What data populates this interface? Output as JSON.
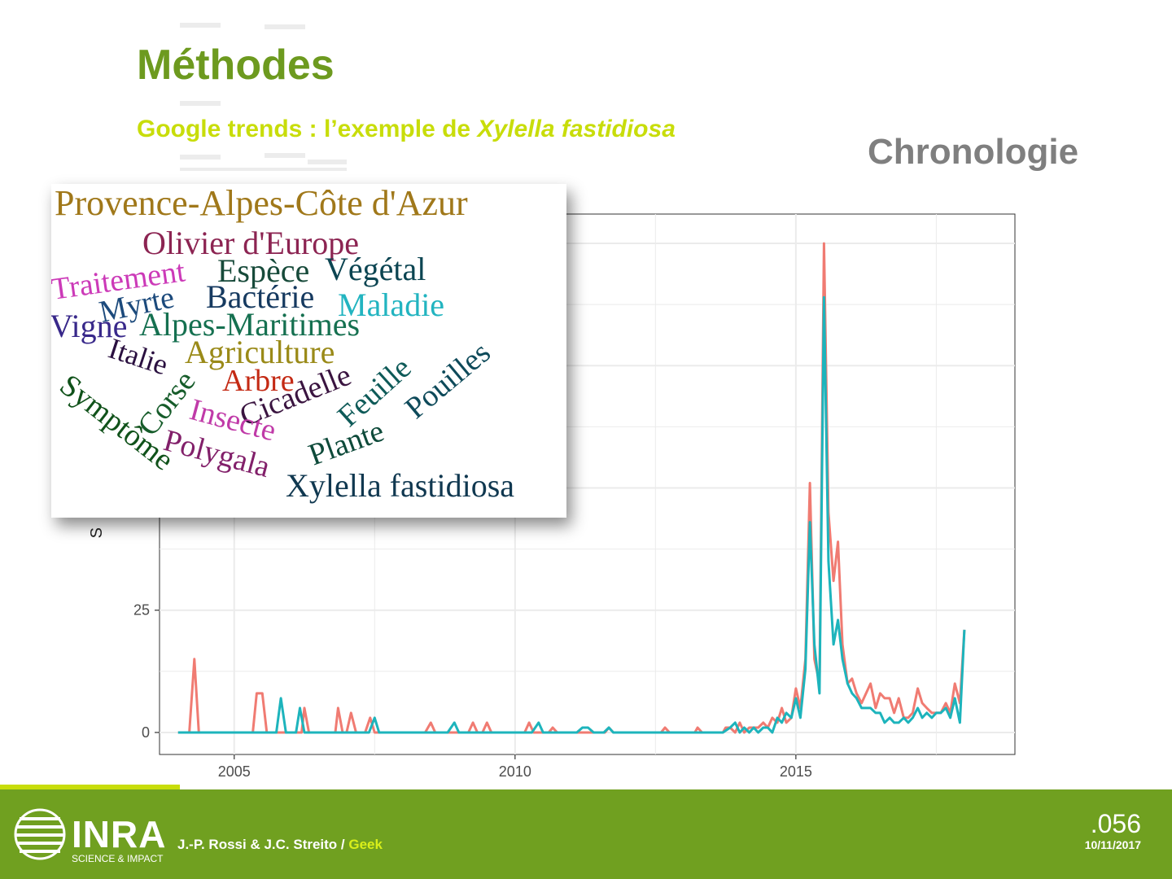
{
  "slide": {
    "title": "Méthodes",
    "subtitle_plain": "Google trends : l’exemple de ",
    "subtitle_italic": "Xylella fastidiosa",
    "section_label": "Chronologie"
  },
  "colors": {
    "title": "#6d9a1f",
    "subtitle": "#c8dd0a",
    "series_1": "#f07b72",
    "series_2": "#1db4bc",
    "footer": "#70a020"
  },
  "chart_data": {
    "type": "line",
    "xlim": [
      2003.67,
      2018.9
    ],
    "ylim": [
      -4.5,
      106
    ],
    "x_ticks": [
      2005,
      2010,
      2015
    ],
    "y_ticks": [
      0,
      25
    ],
    "ylabel_fragment": "S",
    "grid": true,
    "series": [
      {
        "color": "#f07b72",
        "points": [
          [
            2004.0,
            0
          ],
          [
            2004.2,
            0
          ],
          [
            2004.29,
            15
          ],
          [
            2004.37,
            0
          ],
          [
            2005.0,
            0
          ],
          [
            2005.33,
            0
          ],
          [
            2005.4,
            8
          ],
          [
            2005.5,
            8
          ],
          [
            2005.58,
            0
          ],
          [
            2006.2,
            0
          ],
          [
            2006.25,
            5
          ],
          [
            2006.33,
            0
          ],
          [
            2006.8,
            0
          ],
          [
            2006.85,
            5
          ],
          [
            2006.93,
            0
          ],
          [
            2007.0,
            0
          ],
          [
            2007.08,
            4
          ],
          [
            2007.17,
            0
          ],
          [
            2007.33,
            0
          ],
          [
            2007.42,
            3
          ],
          [
            2007.5,
            0
          ],
          [
            2008.0,
            0
          ],
          [
            2008.4,
            0
          ],
          [
            2008.5,
            2
          ],
          [
            2008.58,
            0
          ],
          [
            2009.0,
            0
          ],
          [
            2009.17,
            0
          ],
          [
            2009.25,
            2
          ],
          [
            2009.33,
            0
          ],
          [
            2009.42,
            0
          ],
          [
            2009.5,
            2
          ],
          [
            2009.58,
            0
          ],
          [
            2010.0,
            0
          ],
          [
            2010.17,
            0
          ],
          [
            2010.25,
            2
          ],
          [
            2010.33,
            0
          ],
          [
            2010.6,
            0
          ],
          [
            2010.67,
            1
          ],
          [
            2010.75,
            0
          ],
          [
            2011.6,
            0
          ],
          [
            2011.67,
            1
          ],
          [
            2011.75,
            0
          ],
          [
            2012.6,
            0
          ],
          [
            2012.67,
            1
          ],
          [
            2012.75,
            0
          ],
          [
            2013.2,
            0
          ],
          [
            2013.25,
            1
          ],
          [
            2013.33,
            0
          ],
          [
            2013.7,
            0
          ],
          [
            2013.75,
            1
          ],
          [
            2013.83,
            1
          ],
          [
            2013.92,
            0
          ],
          [
            2014.0,
            2
          ],
          [
            2014.08,
            0
          ],
          [
            2014.17,
            1
          ],
          [
            2014.25,
            1
          ],
          [
            2014.33,
            1
          ],
          [
            2014.42,
            2
          ],
          [
            2014.5,
            1
          ],
          [
            2014.58,
            3
          ],
          [
            2014.67,
            2
          ],
          [
            2014.75,
            5
          ],
          [
            2014.83,
            2
          ],
          [
            2014.92,
            3
          ],
          [
            2015.0,
            9
          ],
          [
            2015.08,
            5
          ],
          [
            2015.17,
            15
          ],
          [
            2015.25,
            51
          ],
          [
            2015.33,
            15
          ],
          [
            2015.42,
            10
          ],
          [
            2015.5,
            100
          ],
          [
            2015.58,
            45
          ],
          [
            2015.67,
            31
          ],
          [
            2015.75,
            39
          ],
          [
            2015.83,
            18
          ],
          [
            2015.92,
            10
          ],
          [
            2016.0,
            11
          ],
          [
            2016.08,
            8
          ],
          [
            2016.17,
            6
          ],
          [
            2016.25,
            8
          ],
          [
            2016.33,
            10
          ],
          [
            2016.42,
            5
          ],
          [
            2016.5,
            8
          ],
          [
            2016.58,
            7
          ],
          [
            2016.67,
            7
          ],
          [
            2016.75,
            4
          ],
          [
            2016.83,
            7
          ],
          [
            2016.92,
            3
          ],
          [
            2017.0,
            3
          ],
          [
            2017.08,
            4
          ],
          [
            2017.17,
            9
          ],
          [
            2017.25,
            6
          ],
          [
            2017.33,
            5
          ],
          [
            2017.42,
            4
          ],
          [
            2017.5,
            4
          ],
          [
            2017.58,
            4
          ],
          [
            2017.67,
            6
          ],
          [
            2017.75,
            4
          ],
          [
            2017.83,
            10
          ],
          [
            2017.92,
            6
          ],
          [
            2018.0,
            21
          ]
        ]
      },
      {
        "color": "#1db4bc",
        "points": [
          [
            2004.0,
            0
          ],
          [
            2005.75,
            0
          ],
          [
            2005.83,
            7
          ],
          [
            2005.92,
            0
          ],
          [
            2006.1,
            0
          ],
          [
            2006.17,
            5
          ],
          [
            2006.25,
            0
          ],
          [
            2007.4,
            0
          ],
          [
            2007.5,
            3
          ],
          [
            2007.58,
            0
          ],
          [
            2008.8,
            0
          ],
          [
            2008.92,
            2
          ],
          [
            2009.0,
            0
          ],
          [
            2010.3,
            0
          ],
          [
            2010.42,
            2
          ],
          [
            2010.5,
            0
          ],
          [
            2011.1,
            0
          ],
          [
            2011.2,
            1
          ],
          [
            2011.3,
            1
          ],
          [
            2011.4,
            0
          ],
          [
            2011.5,
            0
          ],
          [
            2011.58,
            0
          ],
          [
            2011.67,
            1
          ],
          [
            2011.75,
            0
          ],
          [
            2013.7,
            0
          ],
          [
            2013.83,
            1
          ],
          [
            2013.92,
            2
          ],
          [
            2014.0,
            0
          ],
          [
            2014.08,
            1
          ],
          [
            2014.17,
            0
          ],
          [
            2014.25,
            1
          ],
          [
            2014.33,
            0
          ],
          [
            2014.42,
            1
          ],
          [
            2014.5,
            1
          ],
          [
            2014.58,
            0
          ],
          [
            2014.67,
            3
          ],
          [
            2014.75,
            2
          ],
          [
            2014.83,
            4
          ],
          [
            2014.92,
            3
          ],
          [
            2015.0,
            7
          ],
          [
            2015.08,
            3
          ],
          [
            2015.17,
            13
          ],
          [
            2015.25,
            43
          ],
          [
            2015.33,
            18
          ],
          [
            2015.42,
            8
          ],
          [
            2015.5,
            89
          ],
          [
            2015.58,
            35
          ],
          [
            2015.67,
            18
          ],
          [
            2015.75,
            23
          ],
          [
            2015.83,
            15
          ],
          [
            2015.92,
            10
          ],
          [
            2016.0,
            8
          ],
          [
            2016.08,
            7
          ],
          [
            2016.17,
            5
          ],
          [
            2016.25,
            5
          ],
          [
            2016.33,
            5
          ],
          [
            2016.42,
            4
          ],
          [
            2016.5,
            4
          ],
          [
            2016.58,
            2
          ],
          [
            2016.67,
            3
          ],
          [
            2016.75,
            2
          ],
          [
            2016.83,
            2
          ],
          [
            2016.92,
            3
          ],
          [
            2017.0,
            2
          ],
          [
            2017.08,
            3
          ],
          [
            2017.17,
            5
          ],
          [
            2017.25,
            3
          ],
          [
            2017.33,
            4
          ],
          [
            2017.42,
            3
          ],
          [
            2017.5,
            4
          ],
          [
            2017.58,
            4
          ],
          [
            2017.67,
            5
          ],
          [
            2017.75,
            3
          ],
          [
            2017.83,
            7
          ],
          [
            2017.92,
            2
          ],
          [
            2018.0,
            21
          ]
        ]
      }
    ]
  },
  "wordcloud": {
    "words": [
      {
        "text": "Provence-Alpes-Côte d'Azur",
        "color": "#a0781a"
      },
      {
        "text": "Olivier d'Europe",
        "color": "#8c2452"
      },
      {
        "text": "Traitement",
        "color": "#cc3ab8"
      },
      {
        "text": "Espèce",
        "color": "#174a3a"
      },
      {
        "text": "Végétal",
        "color": "#0c4552"
      },
      {
        "text": "Myrte",
        "color": "#1c4a7c"
      },
      {
        "text": "Bactérie",
        "color": "#163a60"
      },
      {
        "text": "Maladie",
        "color": "#22b4c0"
      },
      {
        "text": "Vigne",
        "color": "#38288a"
      },
      {
        "text": "Alpes-Maritimes",
        "color": "#157050"
      },
      {
        "text": "Italie",
        "color": "#2a1040"
      },
      {
        "text": "Agriculture",
        "color": "#9a8a18"
      },
      {
        "text": "Corse",
        "color": "#165c2a"
      },
      {
        "text": "Arbre",
        "color": "#c42a14"
      },
      {
        "text": "Cicadelle",
        "color": "#3a1440"
      },
      {
        "text": "Feuille",
        "color": "#0e5a58"
      },
      {
        "text": "Pouilles",
        "color": "#0e4a5a"
      },
      {
        "text": "Symptôme",
        "color": "#10521a"
      },
      {
        "text": "Insecte",
        "color": "#c03aa8"
      },
      {
        "text": "Plante",
        "color": "#0e4a3a"
      },
      {
        "text": "Polygala",
        "color": "#82206a"
      },
      {
        "text": "Xylella fastidiosa",
        "color": "#103850"
      }
    ]
  },
  "footer": {
    "logo": "INRA",
    "logo_tagline": "SCIENCE & IMPACT",
    "authors": "J.-P. Rossi & J.C. Streito / ",
    "authors_accent": "Geek",
    "slide_number": ".056",
    "date": "10/11/2017"
  }
}
